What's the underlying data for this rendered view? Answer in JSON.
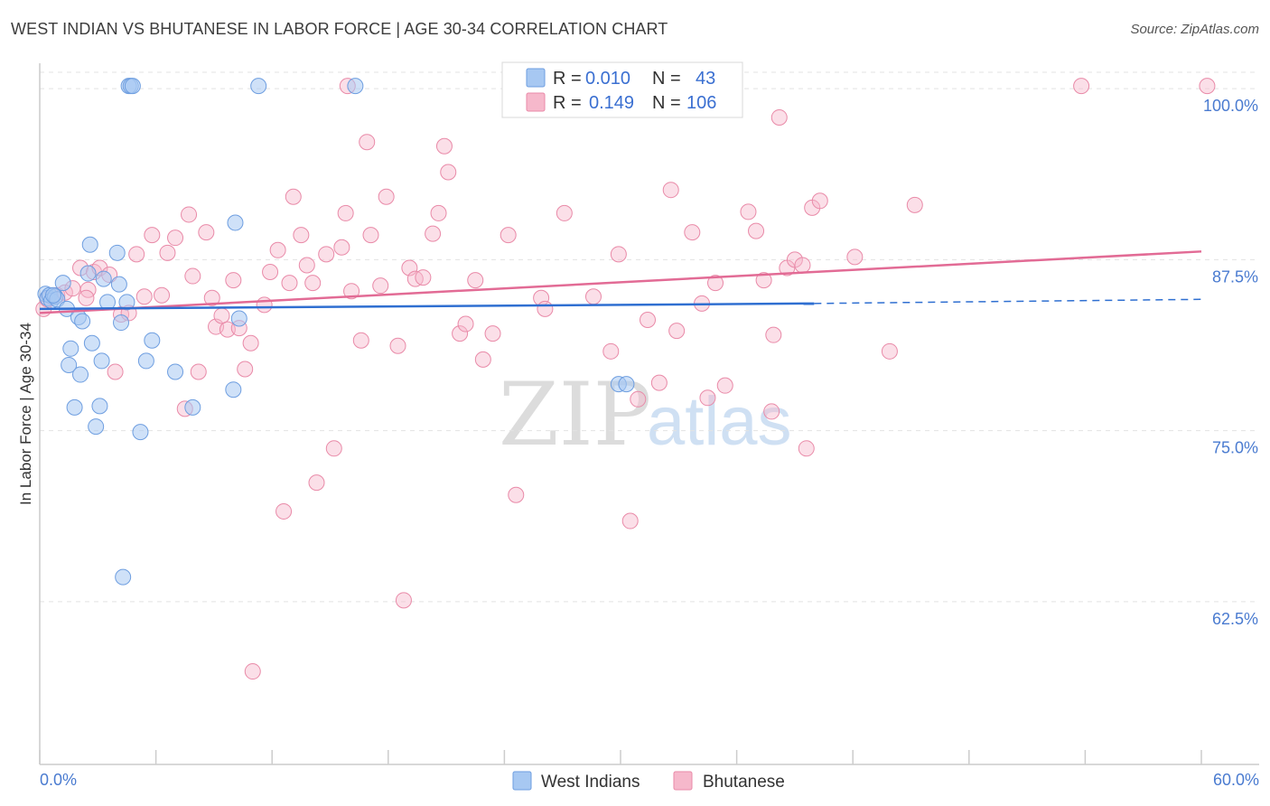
{
  "header": {
    "title": "WEST INDIAN VS BHUTANESE IN LABOR FORCE | AGE 30-34 CORRELATION CHART",
    "source": "Source: ZipAtlas.com"
  },
  "watermark": {
    "zip": "ZIP",
    "atlas": "atlas"
  },
  "legend": {
    "series": [
      {
        "r_label": "R =",
        "r_value": "0.010",
        "n_label": "N =",
        "n_value": "43"
      },
      {
        "r_label": "R =",
        "r_value": "0.149",
        "n_label": "N =",
        "n_value": "106"
      }
    ]
  },
  "bottom_legend": {
    "items": [
      "West Indians",
      "Bhutanese"
    ]
  },
  "chart_data": {
    "type": "scatter",
    "title": "WEST INDIAN VS BHUTANESE IN LABOR FORCE | AGE 30-34 CORRELATION CHART",
    "xlabel": "",
    "ylabel": "In Labor Force | Age 30-34",
    "xlim": [
      0,
      60
    ],
    "ylim": [
      50.6,
      101.2
    ],
    "x_tick_labels": [
      {
        "value": 0,
        "label": "0.0%"
      },
      {
        "value": 60,
        "label": "60.0%"
      }
    ],
    "x_minor_ticks": [
      6,
      12,
      18,
      24,
      30,
      36,
      42,
      48,
      54
    ],
    "y_ticks": [
      {
        "value": 62.5,
        "label": "62.5%"
      },
      {
        "value": 75.0,
        "label": "75.0%"
      },
      {
        "value": 87.5,
        "label": "87.5%"
      },
      {
        "value": 100.0,
        "label": "100.0%"
      }
    ],
    "grid": true,
    "legend_position": "top-center",
    "colors": {
      "west_indians_fill": "#a7c8f2",
      "west_indians_stroke": "#6e9ee0",
      "west_indians_line": "#2f6fd1",
      "bhutanese_fill": "#f6b8cb",
      "bhutanese_stroke": "#e98aa8",
      "bhutanese_line": "#e26b95",
      "tick_label": "#4a7bd0"
    },
    "series": [
      {
        "name": "West Indians",
        "r": 0.01,
        "n": 43,
        "trend": {
          "x": [
            0,
            40
          ],
          "y": [
            83.9,
            84.3
          ],
          "dashed_to": 60,
          "dashed_y": 84.6
        },
        "points": [
          [
            0.3,
            85.0
          ],
          [
            0.4,
            84.7
          ],
          [
            0.5,
            84.9
          ],
          [
            0.6,
            84.5
          ],
          [
            0.8,
            84.8
          ],
          [
            0.9,
            84.6
          ],
          [
            1.2,
            85.8
          ],
          [
            1.4,
            83.9
          ],
          [
            1.5,
            79.8
          ],
          [
            1.6,
            81.0
          ],
          [
            1.8,
            76.7
          ],
          [
            2.0,
            83.3
          ],
          [
            2.1,
            79.1
          ],
          [
            2.2,
            83.0
          ],
          [
            2.6,
            88.6
          ],
          [
            2.7,
            81.4
          ],
          [
            2.9,
            75.3
          ],
          [
            3.1,
            76.8
          ],
          [
            3.2,
            80.1
          ],
          [
            3.3,
            86.1
          ],
          [
            3.5,
            84.4
          ],
          [
            4.0,
            88.0
          ],
          [
            4.2,
            82.9
          ],
          [
            4.3,
            64.3
          ],
          [
            4.5,
            84.4
          ],
          [
            4.6,
            100.2
          ],
          [
            4.7,
            100.2
          ],
          [
            4.8,
            100.2
          ],
          [
            5.2,
            74.9
          ],
          [
            5.5,
            80.1
          ],
          [
            5.8,
            81.6
          ],
          [
            7.0,
            79.3
          ],
          [
            7.9,
            76.7
          ],
          [
            10.0,
            78.0
          ],
          [
            10.1,
            90.2
          ],
          [
            10.3,
            83.2
          ],
          [
            11.3,
            100.2
          ],
          [
            16.3,
            100.2
          ],
          [
            29.9,
            78.4
          ],
          [
            30.3,
            78.4
          ],
          [
            0.7,
            84.9
          ],
          [
            2.5,
            86.5
          ],
          [
            4.1,
            85.7
          ]
        ]
      },
      {
        "name": "Bhutanese",
        "r": 0.149,
        "n": 106,
        "trend": {
          "x": [
            0,
            60
          ],
          "y": [
            83.6,
            88.1
          ]
        },
        "points": [
          [
            0.2,
            83.9
          ],
          [
            0.4,
            84.6
          ],
          [
            0.9,
            84.9
          ],
          [
            1.3,
            85.1
          ],
          [
            1.7,
            85.4
          ],
          [
            2.1,
            86.9
          ],
          [
            2.5,
            85.3
          ],
          [
            2.8,
            86.6
          ],
          [
            3.1,
            86.9
          ],
          [
            3.6,
            86.4
          ],
          [
            3.9,
            79.3
          ],
          [
            4.2,
            83.5
          ],
          [
            4.6,
            83.6
          ],
          [
            5.0,
            87.9
          ],
          [
            5.4,
            84.8
          ],
          [
            5.8,
            89.3
          ],
          [
            6.3,
            84.9
          ],
          [
            6.6,
            88.0
          ],
          [
            7.0,
            89.1
          ],
          [
            7.5,
            76.6
          ],
          [
            7.7,
            90.8
          ],
          [
            7.9,
            86.3
          ],
          [
            8.2,
            79.3
          ],
          [
            8.6,
            89.5
          ],
          [
            8.9,
            84.7
          ],
          [
            9.1,
            82.6
          ],
          [
            9.4,
            83.4
          ],
          [
            9.7,
            82.4
          ],
          [
            10.0,
            86.0
          ],
          [
            10.3,
            82.5
          ],
          [
            10.6,
            79.5
          ],
          [
            10.9,
            81.4
          ],
          [
            11.0,
            57.4
          ],
          [
            11.6,
            84.2
          ],
          [
            11.9,
            86.6
          ],
          [
            12.3,
            88.2
          ],
          [
            12.6,
            69.1
          ],
          [
            12.9,
            85.8
          ],
          [
            13.1,
            92.1
          ],
          [
            13.5,
            89.3
          ],
          [
            13.8,
            87.1
          ],
          [
            14.1,
            85.8
          ],
          [
            14.3,
            71.2
          ],
          [
            14.8,
            87.9
          ],
          [
            15.2,
            73.7
          ],
          [
            15.6,
            88.4
          ],
          [
            15.8,
            90.9
          ],
          [
            16.1,
            85.2
          ],
          [
            16.6,
            81.6
          ],
          [
            16.9,
            96.1
          ],
          [
            17.1,
            89.3
          ],
          [
            17.6,
            85.6
          ],
          [
            17.9,
            92.1
          ],
          [
            18.5,
            81.2
          ],
          [
            18.8,
            62.6
          ],
          [
            19.1,
            86.9
          ],
          [
            19.4,
            86.1
          ],
          [
            19.8,
            86.2
          ],
          [
            20.3,
            89.4
          ],
          [
            20.6,
            90.9
          ],
          [
            20.9,
            95.8
          ],
          [
            21.1,
            93.9
          ],
          [
            21.7,
            82.1
          ],
          [
            22.0,
            82.8
          ],
          [
            22.5,
            86.0
          ],
          [
            22.9,
            80.2
          ],
          [
            23.4,
            82.1
          ],
          [
            24.2,
            89.3
          ],
          [
            24.6,
            70.3
          ],
          [
            25.9,
            84.7
          ],
          [
            26.1,
            83.9
          ],
          [
            27.1,
            90.9
          ],
          [
            27.4,
            100.2
          ],
          [
            28.6,
            84.8
          ],
          [
            29.5,
            80.8
          ],
          [
            29.9,
            87.9
          ],
          [
            30.5,
            68.4
          ],
          [
            30.9,
            77.3
          ],
          [
            31.4,
            83.1
          ],
          [
            32.0,
            78.5
          ],
          [
            32.6,
            92.6
          ],
          [
            32.9,
            82.3
          ],
          [
            33.7,
            89.5
          ],
          [
            34.2,
            84.3
          ],
          [
            34.5,
            77.4
          ],
          [
            34.9,
            85.8
          ],
          [
            35.4,
            78.3
          ],
          [
            36.6,
            91.0
          ],
          [
            37.0,
            89.6
          ],
          [
            37.4,
            86.0
          ],
          [
            37.8,
            76.4
          ],
          [
            37.9,
            82.0
          ],
          [
            38.2,
            97.9
          ],
          [
            38.6,
            86.9
          ],
          [
            39.0,
            87.5
          ],
          [
            39.4,
            87.1
          ],
          [
            39.6,
            73.7
          ],
          [
            39.9,
            91.3
          ],
          [
            40.3,
            91.8
          ],
          [
            42.1,
            87.7
          ],
          [
            43.9,
            80.8
          ],
          [
            45.2,
            91.5
          ],
          [
            53.8,
            100.2
          ],
          [
            60.3,
            100.2
          ],
          [
            15.9,
            100.2
          ],
          [
            2.4,
            84.7
          ]
        ]
      }
    ]
  }
}
